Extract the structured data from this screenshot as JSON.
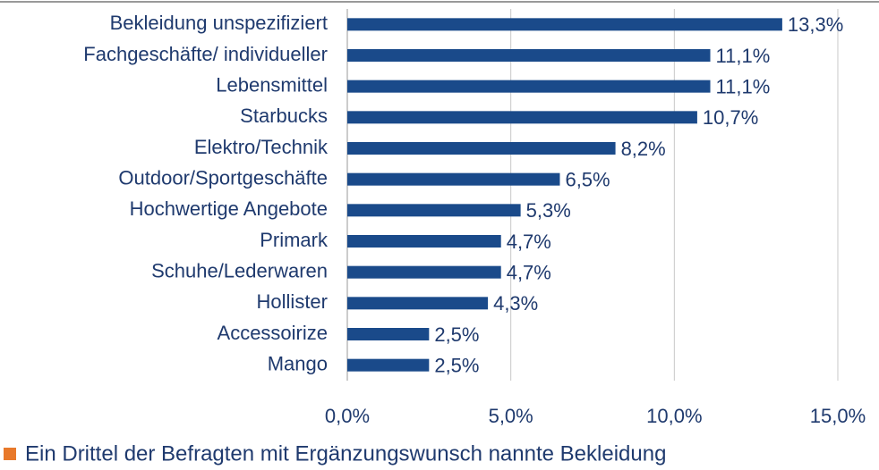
{
  "chart_data": {
    "type": "bar",
    "orientation": "horizontal",
    "categories": [
      "Bekleidung unspezifiziert",
      "Fachgeschäfte/ individueller",
      "Lebensmittel",
      "Starbucks",
      "Elektro/Technik",
      "Outdoor/Sportgeschäfte",
      "Hochwertige Angebote",
      "Primark",
      "Schuhe/Lederwaren",
      "Hollister",
      "Accessoirize",
      "Mango"
    ],
    "values": [
      13.3,
      11.1,
      11.1,
      10.7,
      8.2,
      6.5,
      5.3,
      4.7,
      4.7,
      4.3,
      2.5,
      2.5
    ],
    "value_labels": [
      "13,3%",
      "11,1%",
      "11,1%",
      "10,7%",
      "8,2%",
      "6,5%",
      "5,3%",
      "4,7%",
      "4,7%",
      "4,3%",
      "2,5%",
      "2,5%"
    ],
    "color": "#1a4a8a",
    "xlim": [
      0,
      15
    ],
    "xticks": [
      {
        "value": 0,
        "label": "0,0%"
      },
      {
        "value": 5,
        "label": "5,0%"
      },
      {
        "value": 10,
        "label": "10,0%"
      },
      {
        "value": 15,
        "label": "15,0%"
      }
    ],
    "grid": true,
    "annotation": "Ein Drittel der Befragten mit Ergänzungswunsch nannte Bekleidung"
  }
}
